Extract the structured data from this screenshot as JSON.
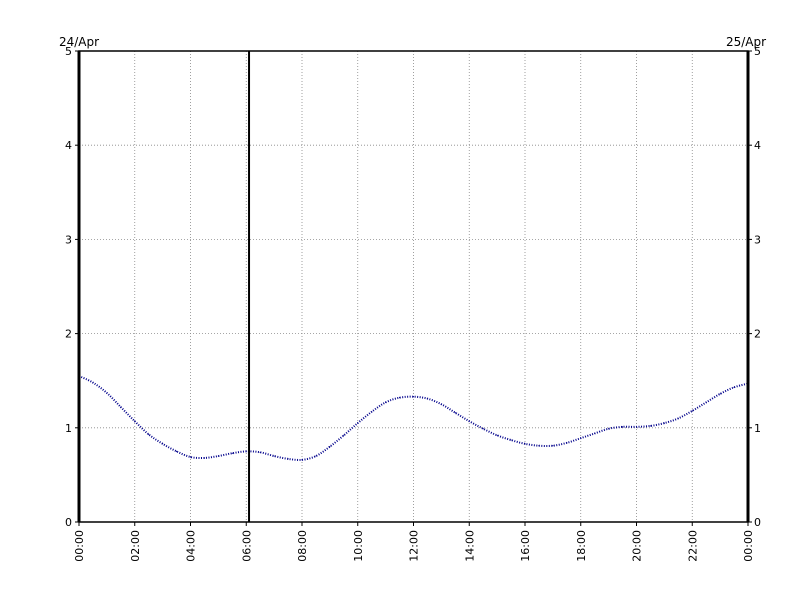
{
  "chart_data": {
    "type": "line",
    "title": "",
    "xlabel": "",
    "ylabel": "",
    "date_left": "24/Apr",
    "date_right": "25/Apr",
    "x_tick_labels": [
      "00:00",
      "02:00",
      "04:00",
      "06:00",
      "08:00",
      "10:00",
      "12:00",
      "14:00",
      "16:00",
      "18:00",
      "20:00",
      "22:00",
      "00:00"
    ],
    "y_tick_labels": [
      "0",
      "1",
      "2",
      "3",
      "4",
      "5"
    ],
    "xlim": [
      0,
      24
    ],
    "ylim": [
      0,
      5
    ],
    "grid": true,
    "current_time_marker": 6.1,
    "series": [
      {
        "color": "#00008b",
        "style": "dotted",
        "x": [
          0,
          0.5,
          1,
          1.5,
          2,
          2.5,
          3,
          3.5,
          4,
          4.5,
          5,
          5.5,
          6,
          6.5,
          7,
          7.5,
          8,
          8.5,
          9,
          9.5,
          10,
          10.5,
          11,
          11.5,
          12,
          12.5,
          13,
          13.5,
          14,
          14.5,
          15,
          15.5,
          16,
          16.5,
          17,
          17.5,
          18,
          18.5,
          19,
          19.5,
          20,
          20.5,
          21,
          21.5,
          22,
          22.5,
          23,
          23.5,
          24
        ],
        "y": [
          1.55,
          1.48,
          1.37,
          1.22,
          1.07,
          0.93,
          0.83,
          0.75,
          0.69,
          0.68,
          0.7,
          0.73,
          0.75,
          0.74,
          0.7,
          0.67,
          0.66,
          0.7,
          0.8,
          0.92,
          1.05,
          1.17,
          1.27,
          1.32,
          1.33,
          1.31,
          1.25,
          1.16,
          1.07,
          0.99,
          0.92,
          0.87,
          0.83,
          0.81,
          0.81,
          0.84,
          0.89,
          0.94,
          0.99,
          1.01,
          1.01,
          1.02,
          1.05,
          1.1,
          1.18,
          1.27,
          1.36,
          1.43,
          1.47
        ]
      }
    ]
  }
}
